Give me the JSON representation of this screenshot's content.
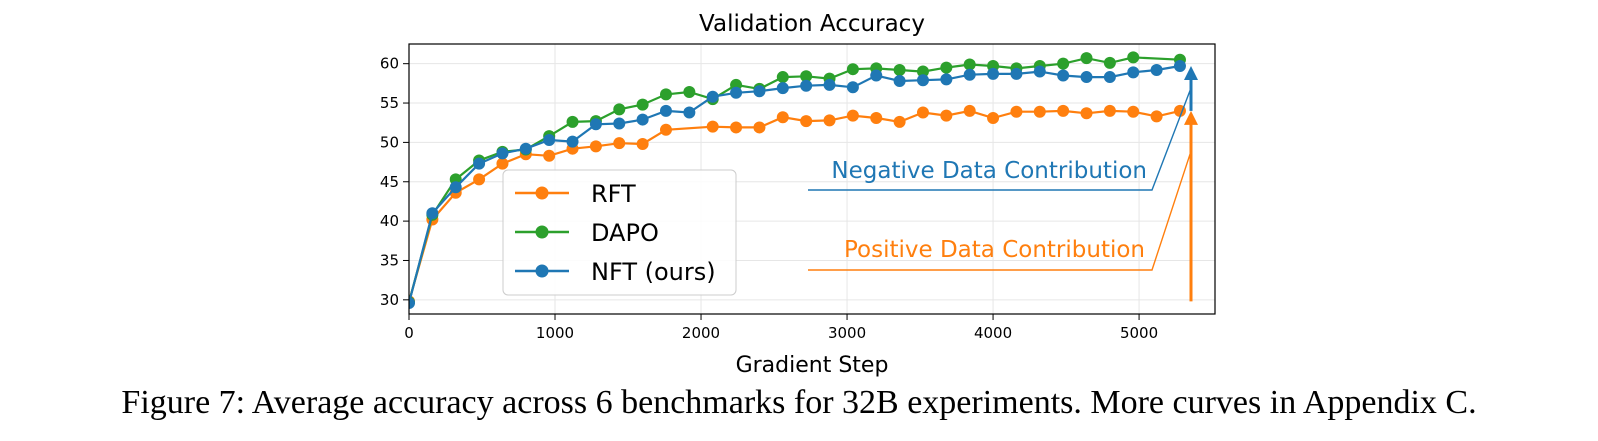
{
  "chart_data": {
    "type": "line",
    "title": "Validation Accuracy",
    "xlabel": "Gradient Step",
    "ylabel": "",
    "xlim": [
      0,
      5520
    ],
    "ylim": [
      28.2,
      62.5
    ],
    "xticks": [
      0,
      1000,
      2000,
      3000,
      4000,
      5000
    ],
    "yticks": [
      30,
      35,
      40,
      45,
      50,
      55,
      60
    ],
    "grid": true,
    "legend_position": "center-left",
    "series": [
      {
        "name": "RFT",
        "color": "#ff7f0e",
        "x": [
          0,
          160,
          320,
          480,
          640,
          800,
          960,
          1120,
          1280,
          1440,
          1600,
          1760,
          2080,
          2240,
          2400,
          2560,
          2720,
          2880,
          3040,
          3200,
          3360,
          3520,
          3680,
          3840,
          4000,
          4160,
          4320,
          4480,
          4640,
          4800,
          4960,
          5120,
          5280
        ],
        "y": [
          29.8,
          40.2,
          43.6,
          45.3,
          47.3,
          48.5,
          48.3,
          49.2,
          49.5,
          49.9,
          49.8,
          51.6,
          52.0,
          51.9,
          51.9,
          53.2,
          52.7,
          52.8,
          53.4,
          53.1,
          52.6,
          53.8,
          53.4,
          54.0,
          53.1,
          53.9,
          53.9,
          54.0,
          53.7,
          54.0,
          53.9,
          53.3,
          54.0
        ]
      },
      {
        "name": "DAPO",
        "color": "#2ca02c",
        "x": [
          0,
          160,
          320,
          480,
          640,
          800,
          960,
          1120,
          1280,
          1440,
          1600,
          1760,
          1920,
          2080,
          2240,
          2400,
          2560,
          2720,
          2880,
          3040,
          3200,
          3360,
          3520,
          3680,
          3840,
          4000,
          4160,
          4320,
          4480,
          4640,
          4800,
          4960,
          5280
        ],
        "y": [
          29.7,
          40.8,
          45.3,
          47.7,
          48.8,
          49.1,
          50.8,
          52.6,
          52.7,
          54.2,
          54.8,
          56.1,
          56.4,
          55.5,
          57.3,
          56.8,
          58.3,
          58.4,
          58.1,
          59.3,
          59.4,
          59.2,
          59.0,
          59.5,
          59.9,
          59.7,
          59.4,
          59.7,
          60.0,
          60.7,
          60.1,
          60.8,
          60.5
        ]
      },
      {
        "name": "NFT (ours)",
        "color": "#1f77b4",
        "x": [
          0,
          160,
          320,
          480,
          640,
          800,
          960,
          1120,
          1280,
          1440,
          1600,
          1760,
          1920,
          2080,
          2240,
          2400,
          2560,
          2720,
          2880,
          3040,
          3200,
          3360,
          3520,
          3680,
          3840,
          4000,
          4160,
          4320,
          4480,
          4640,
          4800,
          4960,
          5120,
          5280
        ],
        "y": [
          29.6,
          41.0,
          44.3,
          47.3,
          48.6,
          49.2,
          50.3,
          50.1,
          52.3,
          52.4,
          52.9,
          54.0,
          53.8,
          55.8,
          56.3,
          56.5,
          56.9,
          57.2,
          57.3,
          57.0,
          58.5,
          57.8,
          57.9,
          58.0,
          58.6,
          58.7,
          58.7,
          59.0,
          58.5,
          58.3,
          58.3,
          58.9,
          59.2,
          59.7
        ]
      }
    ],
    "annotations": [
      {
        "text": "Negative Data Contribution",
        "color": "#1f77b4"
      },
      {
        "text": "Positive Data Contribution",
        "color": "#ff7f0e"
      }
    ]
  },
  "caption": "Figure 7: Average accuracy across 6 benchmarks for 32B experiments. More curves in Appendix C."
}
